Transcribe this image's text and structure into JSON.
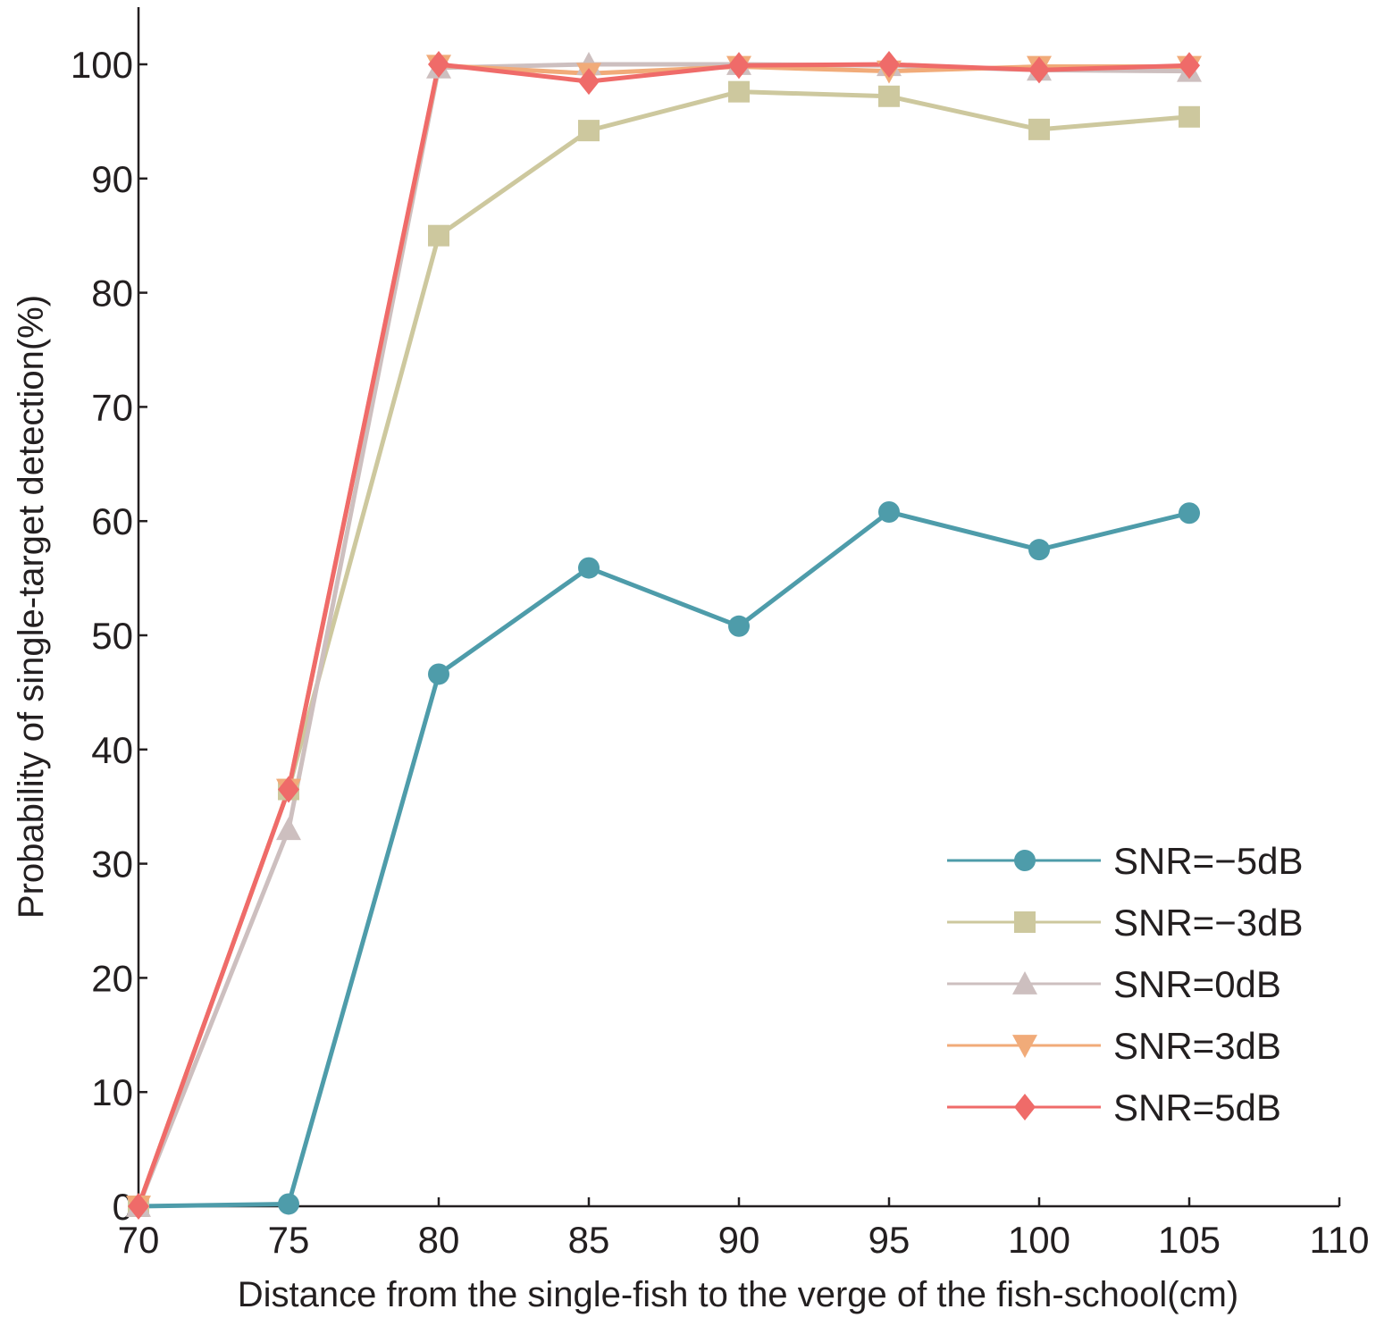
{
  "chart_data": {
    "type": "line",
    "title": "",
    "xlabel": "Distance from the single-fish to the verge of the fish-school(cm)",
    "ylabel": "Probability of single-target detection(%)",
    "xlim": [
      70,
      110
    ],
    "ylim": [
      0,
      100
    ],
    "xticks": [
      "70",
      "75",
      "80",
      "85",
      "90",
      "95",
      "100",
      "105",
      "110"
    ],
    "yticks": [
      "0",
      "10",
      "20",
      "30",
      "40",
      "50",
      "60",
      "70",
      "80",
      "90",
      "100"
    ],
    "grid": false,
    "legend_position": "bottom-right",
    "x": [
      70,
      75,
      80,
      85,
      90,
      95,
      100,
      105
    ],
    "series": [
      {
        "name": "SNR=−5dB",
        "marker": "circle",
        "color": "#4e9caa",
        "values": [
          0,
          0.2,
          46.6,
          55.9,
          50.8,
          60.8,
          57.5,
          60.7
        ]
      },
      {
        "name": "SNR=−3dB",
        "marker": "square",
        "color": "#cdc89e",
        "values": [
          0,
          36.5,
          85.0,
          94.2,
          97.6,
          97.2,
          94.3,
          95.4
        ]
      },
      {
        "name": "SNR=0dB",
        "marker": "triangle-up",
        "color": "#cdbfbf",
        "values": [
          0,
          33.0,
          99.7,
          100,
          100,
          99.9,
          99.5,
          99.4
        ]
      },
      {
        "name": "SNR=3dB",
        "marker": "triangle-down",
        "color": "#f1ab79",
        "values": [
          0,
          36.5,
          99.9,
          99.2,
          99.8,
          99.4,
          99.8,
          99.8
        ]
      },
      {
        "name": "SNR=5dB",
        "marker": "diamond",
        "color": "#ef6b69",
        "values": [
          0,
          36.5,
          100,
          98.5,
          99.9,
          100,
          99.5,
          99.9
        ]
      }
    ]
  }
}
